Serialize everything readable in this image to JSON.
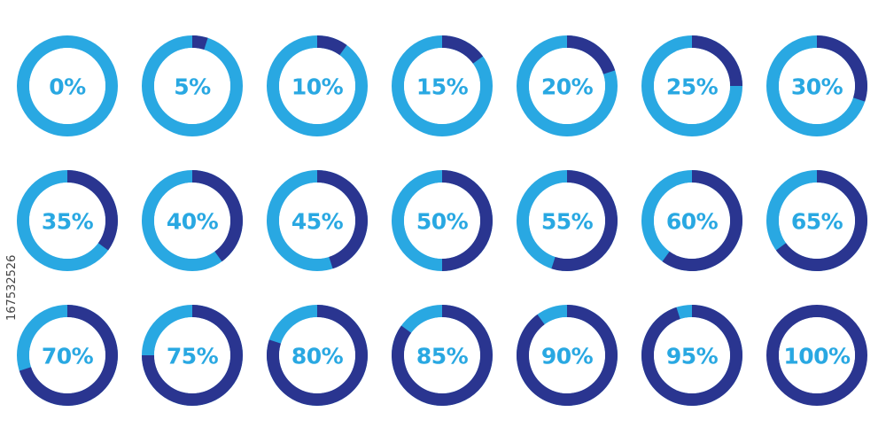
{
  "colors": {
    "track": "#29a8e2",
    "fill": "#2a3590",
    "center": "#ffffff",
    "label": "#29a8e2"
  },
  "stock_id": "167532526",
  "chart_data": {
    "type": "pie",
    "variant": "donut-grid",
    "rows": 3,
    "columns": 7,
    "unit": "%",
    "labels": [
      "0%",
      "5%",
      "10%",
      "15%",
      "20%",
      "25%",
      "30%",
      "35%",
      "40%",
      "45%",
      "50%",
      "55%",
      "60%",
      "65%",
      "70%",
      "75%",
      "80%",
      "85%",
      "90%",
      "95%",
      "100%"
    ],
    "values": [
      0,
      5,
      10,
      15,
      20,
      25,
      30,
      35,
      40,
      45,
      50,
      55,
      60,
      65,
      70,
      75,
      80,
      85,
      90,
      95,
      100
    ]
  }
}
